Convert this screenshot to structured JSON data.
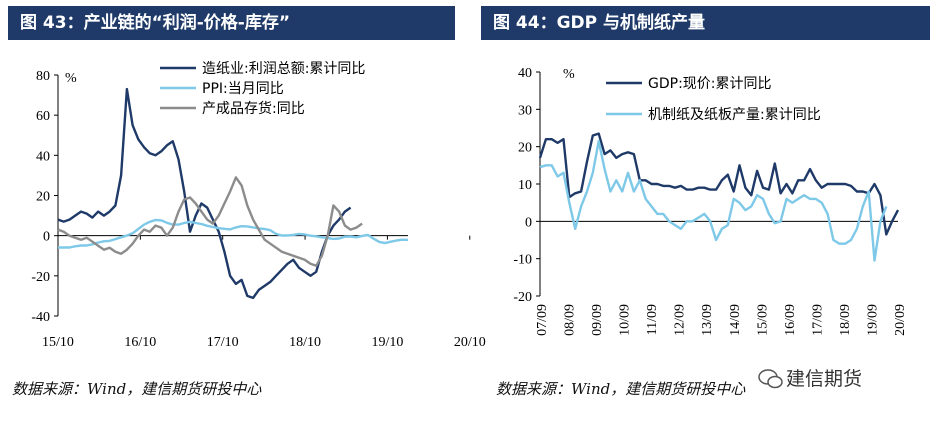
{
  "left_panel": {
    "header": "图 43：产业链的“利润-价格-库存”",
    "source": "数据来源：Wind，建信期货研投中心"
  },
  "right_panel": {
    "header": "图 44：GDP 与机制纸产量",
    "source": "数据来源：Wind，建信期货研投中心"
  },
  "watermark": "建信期货",
  "colors": {
    "navy": "#1f3a68",
    "light_blue": "#7ec8e8",
    "gray": "#8c8c8c"
  },
  "chart_data": [
    {
      "type": "line",
      "unit_label": "%",
      "ylim": [
        -40,
        80
      ],
      "yticks": [
        -40,
        -20,
        0,
        20,
        40,
        60,
        80
      ],
      "x_tick_labels": [
        "15/10",
        "16/10",
        "17/10",
        "18/10",
        "19/10",
        "20/10"
      ],
      "x_tick_index": [
        0,
        12,
        24,
        36,
        48,
        60
      ],
      "legend": [
        "造纸业:利润总额:累计同比",
        "PPI:当月同比",
        "产成品存货:同比"
      ],
      "series": [
        {
          "name": "造纸业:利润总额:累计同比",
          "color": "#1f3a68",
          "values": [
            8,
            7,
            8,
            10,
            12,
            11,
            9,
            12,
            10,
            12,
            15,
            30,
            73,
            55,
            48,
            44,
            41,
            40,
            42,
            45,
            47,
            38,
            22,
            2,
            10,
            16,
            14,
            8,
            2,
            -8,
            -20,
            -24,
            -22,
            -30,
            -31,
            -27,
            -25,
            -23,
            -20,
            -17,
            -14,
            -12,
            -16,
            -18,
            -20,
            -18,
            -8,
            0,
            5,
            8,
            12,
            14
          ]
        },
        {
          "name": "PPI:当月同比",
          "color": "#7ec8e8",
          "values": [
            -5.9,
            -5.9,
            -5.9,
            -5.3,
            -4.9,
            -4.9,
            -4.3,
            -3.4,
            -2.8,
            -2.6,
            -1.7,
            -0.8,
            0.1,
            1.2,
            3.3,
            5.5,
            6.9,
            7.8,
            7.6,
            6.4,
            5.5,
            5.5,
            6.3,
            6.9,
            6.3,
            5.8,
            4.9,
            4.3,
            3.7,
            3.4,
            3.1,
            4.1,
            4.7,
            4.6,
            4.1,
            3.6,
            3.3,
            2.7,
            0.9,
            0.1,
            0.1,
            0.4,
            0.9,
            0.6,
            0.0,
            -0.3,
            -0.8,
            -1.2,
            -1.6,
            -1.4,
            -0.5,
            -0.4,
            -0.8,
            -0.1,
            0.4,
            -1.5,
            -3.1,
            -3.7,
            -3.0,
            -2.4,
            -2.0,
            -2.1
          ]
        },
        {
          "name": "产成品存货:同比",
          "color": "#8c8c8c",
          "values": [
            3,
            2,
            0,
            -1,
            -2,
            -1,
            -3,
            -5,
            -7,
            -6,
            -8,
            -9,
            -7,
            -4,
            0,
            3,
            2,
            5,
            4,
            0,
            4,
            12,
            18,
            19,
            16,
            12,
            8,
            6,
            10,
            16,
            22,
            29,
            25,
            15,
            8,
            3,
            -2,
            -4,
            -6,
            -8,
            -9,
            -10,
            -11,
            -12,
            -14,
            -15,
            -10,
            0,
            15,
            12,
            5,
            3,
            4,
            6
          ]
        }
      ]
    },
    {
      "type": "line",
      "unit_label": "%",
      "ylim": [
        -20,
        40
      ],
      "yticks": [
        -20,
        -10,
        0,
        10,
        20,
        30,
        40
      ],
      "x_tick_labels": [
        "07/09",
        "08/09",
        "09/09",
        "10/09",
        "11/09",
        "12/09",
        "13/09",
        "14/09",
        "15/09",
        "16/09",
        "17/09",
        "18/09",
        "19/09",
        "20/09"
      ],
      "legend": [
        "GDP:现价:累计同比",
        "机制纸及纸板产量:累计同比"
      ],
      "series": [
        {
          "name": "GDP:现价:累计同比",
          "color": "#1f3a68",
          "values": [
            17,
            22,
            22,
            21,
            22,
            6.5,
            7.5,
            8,
            16,
            23,
            23.5,
            18,
            19,
            17,
            18,
            18.5,
            18,
            11,
            11,
            10,
            10,
            9.5,
            9.5,
            9,
            9.5,
            8.5,
            8.5,
            9,
            9,
            8.5,
            8.5,
            11,
            12.5,
            8,
            15,
            9,
            7,
            13.5,
            9,
            8.5,
            15.5,
            7.5,
            10,
            7.5,
            11,
            11,
            14,
            11,
            9,
            10,
            10,
            10,
            10,
            9.5,
            8,
            8,
            7.5,
            10,
            7,
            -3.5,
            0,
            3
          ]
        },
        {
          "name": "机制纸及纸板产量:累计同比",
          "color": "#7ec8e8",
          "values": [
            14.5,
            15,
            15,
            12,
            13,
            5,
            -2,
            4,
            8,
            13,
            21.5,
            14,
            8,
            11,
            8,
            13,
            8,
            11,
            6,
            4,
            2,
            2,
            0,
            -1,
            -2,
            0,
            0,
            1,
            2,
            0,
            -5,
            -2,
            -1,
            6,
            5,
            3,
            4,
            7,
            6,
            2,
            -0.5,
            0,
            6,
            5,
            6,
            7,
            6,
            6,
            5,
            2,
            -5,
            -6,
            -6,
            -5,
            -2,
            4,
            8,
            -10.5,
            0,
            4
          ]
        }
      ]
    }
  ]
}
